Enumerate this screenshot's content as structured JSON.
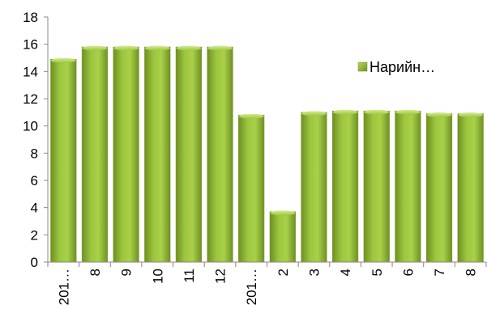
{
  "chart_data": {
    "type": "bar",
    "categories": [
      "201…",
      "8",
      "9",
      "10",
      "11",
      "12",
      "201…",
      "2",
      "3",
      "4",
      "5",
      "6",
      "7",
      "8"
    ],
    "series": [
      {
        "name": "Нарийн…",
        "values": [
          14.9,
          15.8,
          15.8,
          15.8,
          15.8,
          15.8,
          10.8,
          3.7,
          11.0,
          11.1,
          11.1,
          11.1,
          10.9,
          10.9
        ],
        "color": "#8DB33A"
      }
    ],
    "ylim": [
      0,
      18
    ],
    "yticks": [
      0,
      2,
      4,
      6,
      8,
      10,
      12,
      14,
      16,
      18
    ],
    "xlabel": "",
    "ylabel": "",
    "title": "",
    "grid": false,
    "legend": "right"
  }
}
